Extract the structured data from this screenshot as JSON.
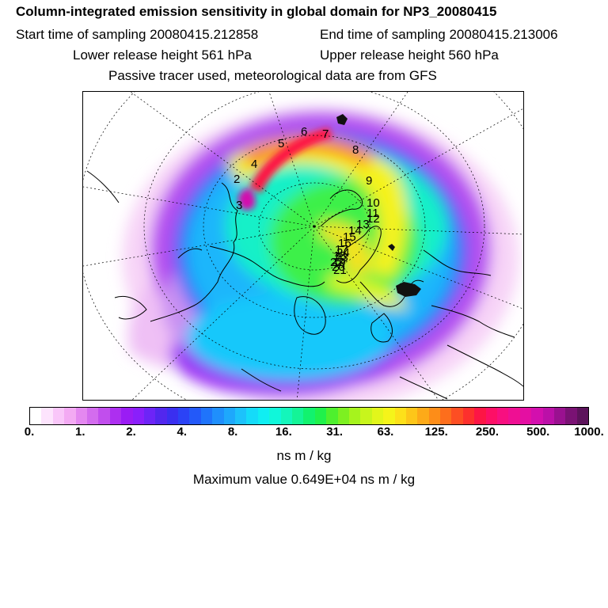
{
  "header": {
    "title": "Column-integrated emission sensitivity in global domain for NP3_20080415",
    "start": "Start time of sampling 20080415.212858",
    "end": "End time of sampling 20080415.213006",
    "lower": "Lower release height  561 hPa",
    "upper": "Upper release height  560 hPa",
    "note": "Passive tracer used, meteorological data are from GFS"
  },
  "map": {
    "projection": "polar stereographic (north pole)",
    "graticule": "dotted",
    "trajectory_labels": [
      "2",
      "3",
      "4",
      "5",
      "6",
      "7",
      "8",
      "9",
      "10",
      "11",
      "12",
      "13",
      "14",
      "15",
      "16",
      "17",
      "18",
      "19",
      "20",
      "21",
      "22",
      "23",
      "24"
    ]
  },
  "colorbar": {
    "tick_labels": [
      "0.",
      "1.",
      "2.",
      "4.",
      "8.",
      "16.",
      "31.",
      "63.",
      "125.",
      "250.",
      "500.",
      "1000."
    ],
    "colors": [
      "#ffffff",
      "#fde4fd",
      "#f9c6f9",
      "#f3aaf3",
      "#e488f0",
      "#d36cee",
      "#c14eed",
      "#ad2ff0",
      "#9a1cf4",
      "#8a1ffb",
      "#6d24f7",
      "#5227ee",
      "#3a2ff0",
      "#2b43f6",
      "#2359f9",
      "#1f74fb",
      "#1f8ffc",
      "#1ea8fc",
      "#1dc2fb",
      "#15dbf9",
      "#10eef2",
      "#10f7da",
      "#14f6bb",
      "#14f497",
      "#12f26e",
      "#20f14b",
      "#4ef02e",
      "#7df021",
      "#a6f31d",
      "#c8f51c",
      "#e2f61b",
      "#f5f41a",
      "#fde01a",
      "#fdc619",
      "#fdaa18",
      "#fd8d18",
      "#fd6e1c",
      "#fd4e23",
      "#fd302d",
      "#fd1545",
      "#fd0f66",
      "#f80f80",
      "#ef0f93",
      "#e40fa2",
      "#d30fae",
      "#bb10a8",
      "#9a1190",
      "#7a1274",
      "#5c135b"
    ],
    "units": "ns m / kg"
  },
  "max_value": "Maximum value  0.649E+04 ns m / kg"
}
